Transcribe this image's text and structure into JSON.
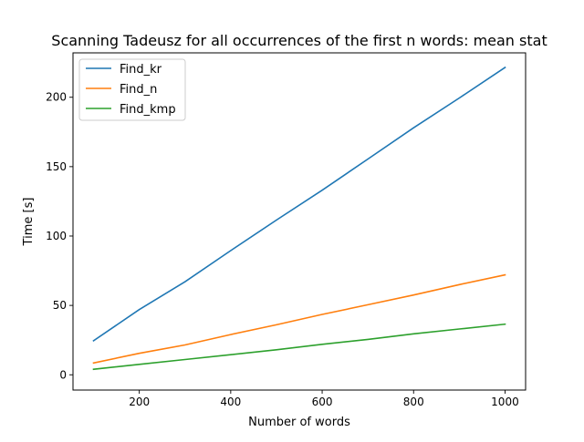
{
  "chart_data": {
    "type": "line",
    "title": "Scanning Tadeusz for all occurrences of the first n words: mean stat",
    "xlabel": "Number of words",
    "ylabel": "Time [s]",
    "xlim": [
      55,
      1045
    ],
    "ylim": [
      -11,
      232
    ],
    "xticks": [
      200,
      400,
      600,
      800,
      1000
    ],
    "yticks": [
      0,
      50,
      100,
      150,
      200
    ],
    "grid": false,
    "legend_position": "top-left",
    "x": [
      100,
      200,
      300,
      400,
      500,
      600,
      700,
      800,
      900,
      1000
    ],
    "series": [
      {
        "name": "Find_kr",
        "color": "#1f77b4",
        "values": [
          24.5,
          47.0,
          67.0,
          89.5,
          111.5,
          133.0,
          155.5,
          178.0,
          199.5,
          221.5
        ]
      },
      {
        "name": "Find_n",
        "color": "#ff7f0e",
        "values": [
          8.5,
          15.5,
          21.5,
          29.0,
          36.0,
          43.5,
          50.5,
          57.5,
          65.0,
          72.0
        ]
      },
      {
        "name": "Find_kmp",
        "color": "#2ca02c",
        "values": [
          4.0,
          7.5,
          11.0,
          14.5,
          18.0,
          22.0,
          25.5,
          29.5,
          33.0,
          36.5
        ]
      }
    ]
  }
}
